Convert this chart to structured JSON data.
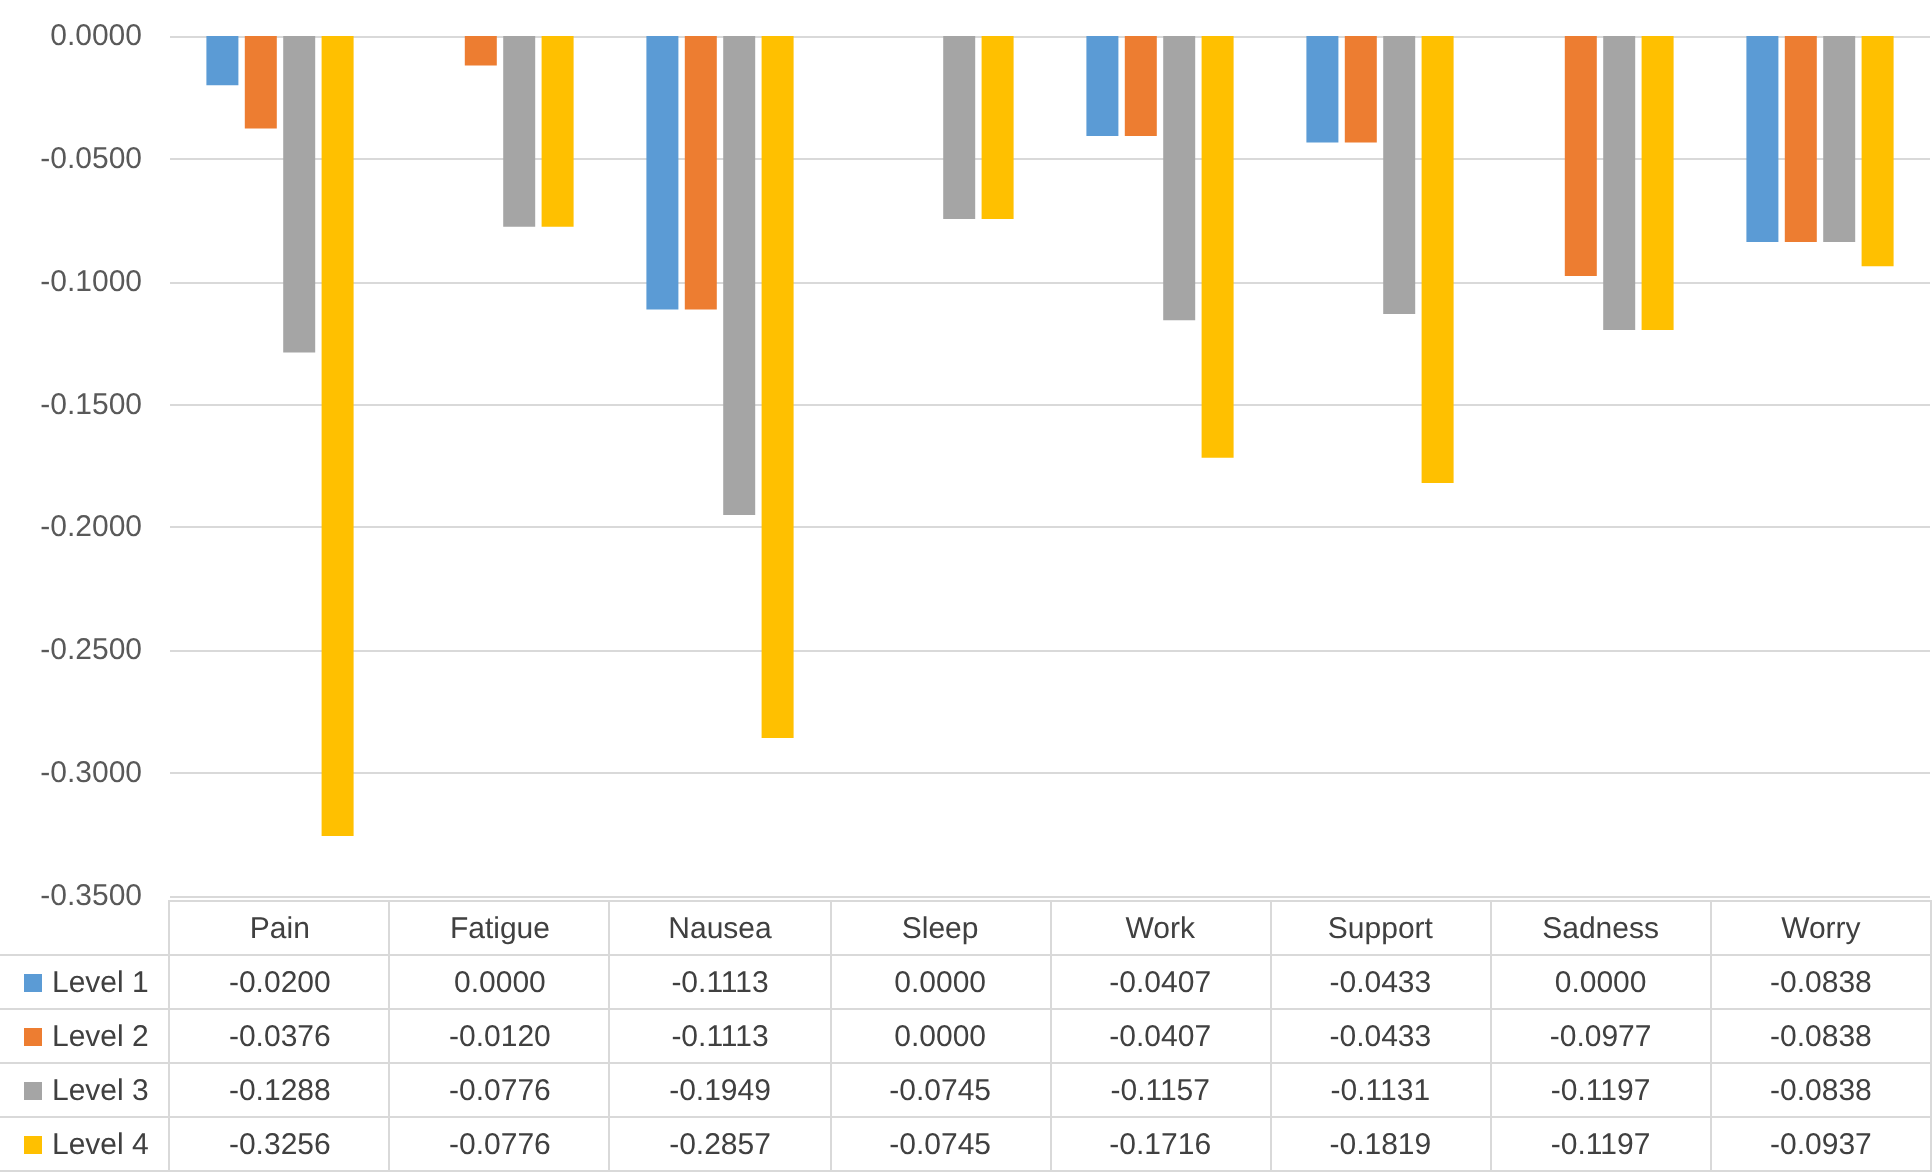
{
  "chart_data": {
    "type": "bar",
    "categories": [
      "Pain",
      "Fatigue",
      "Nausea",
      "Sleep",
      "Work",
      "Support",
      "Sadness",
      "Worry"
    ],
    "series": [
      {
        "name": "Level 1",
        "color": "#5b9bd5",
        "values": [
          -0.02,
          0,
          -0.1113,
          0,
          -0.0407,
          -0.0433,
          0,
          -0.0838
        ],
        "value_labels": [
          "-0.0200",
          "0.0000",
          "-0.1113",
          "0.0000",
          "-0.0407",
          "-0.0433",
          "0.0000",
          "-0.0838"
        ]
      },
      {
        "name": "Level 2",
        "color": "#ed7d31",
        "values": [
          -0.0376,
          -0.012,
          -0.1113,
          0,
          -0.0407,
          -0.0433,
          -0.0977,
          -0.0838
        ],
        "value_labels": [
          "-0.0376",
          "-0.0120",
          "-0.1113",
          "0.0000",
          "-0.0407",
          "-0.0433",
          "-0.0977",
          "-0.0838"
        ]
      },
      {
        "name": "Level 3",
        "color": "#a5a5a5",
        "values": [
          -0.1288,
          -0.0776,
          -0.1949,
          -0.0745,
          -0.1157,
          -0.1131,
          -0.1197,
          -0.0838
        ],
        "value_labels": [
          "-0.1288",
          "-0.0776",
          "-0.1949",
          "-0.0745",
          "-0.1157",
          "-0.1131",
          "-0.1197",
          "-0.0838"
        ]
      },
      {
        "name": "Level 4",
        "color": "#ffc000",
        "values": [
          -0.3256,
          -0.0776,
          -0.2857,
          -0.0745,
          -0.1716,
          -0.1819,
          -0.1197,
          -0.0937
        ],
        "value_labels": [
          "-0.3256",
          "-0.0776",
          "-0.2857",
          "-0.0745",
          "-0.1716",
          "-0.1819",
          "-0.1197",
          "-0.0937"
        ]
      }
    ],
    "ylim": [
      -0.35,
      0
    ],
    "yticks": [
      {
        "value": -0.35,
        "label": "-0.3500"
      },
      {
        "value": -0.3,
        "label": "-0.3000"
      },
      {
        "value": -0.25,
        "label": "-0.2500"
      },
      {
        "value": -0.2,
        "label": "-0.2000"
      },
      {
        "value": -0.15,
        "label": "-0.1500"
      },
      {
        "value": -0.1,
        "label": "-0.1000"
      },
      {
        "value": -0.05,
        "label": "-0.0500"
      },
      {
        "value": 0,
        "label": "0.0000"
      }
    ],
    "grid": "y",
    "legend": "bottom"
  }
}
